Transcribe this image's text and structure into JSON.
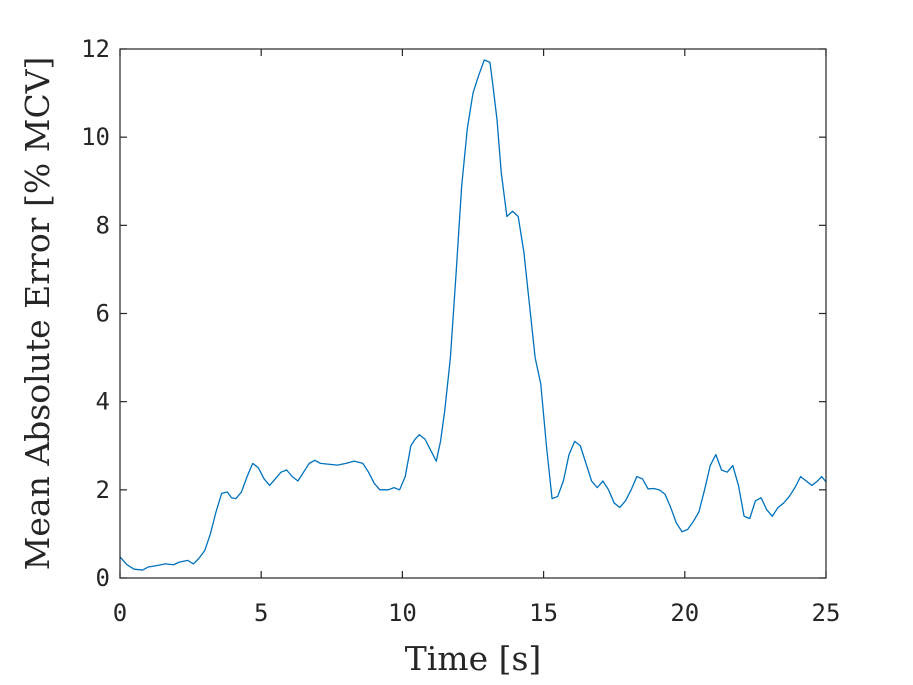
{
  "chart_data": {
    "type": "line",
    "xlabel": "Time [s]",
    "ylabel": "Mean Absolute Error [% MCV]",
    "xlim": [
      0,
      25
    ],
    "ylim": [
      0,
      12
    ],
    "xticks": [
      0,
      5,
      10,
      15,
      20,
      25
    ],
    "yticks": [
      0,
      2,
      4,
      6,
      8,
      10,
      12
    ],
    "xtick_labels": [
      "0",
      "5",
      "10",
      "15",
      "20",
      "25"
    ],
    "ytick_labels": [
      "0",
      "2",
      "4",
      "6",
      "8",
      "10",
      "12"
    ],
    "grid": false,
    "box": true,
    "series": [
      {
        "color": "#0072BD",
        "x": [
          0.0,
          0.25,
          0.5,
          0.8,
          1.0,
          1.3,
          1.6,
          1.9,
          2.1,
          2.4,
          2.6,
          2.8,
          3.0,
          3.2,
          3.4,
          3.6,
          3.8,
          3.95,
          4.1,
          4.3,
          4.5,
          4.7,
          4.9,
          5.1,
          5.3,
          5.5,
          5.7,
          5.9,
          6.1,
          6.3,
          6.5,
          6.7,
          6.9,
          7.1,
          7.4,
          7.7,
          8.0,
          8.3,
          8.6,
          8.8,
          9.0,
          9.2,
          9.5,
          9.7,
          9.9,
          10.1,
          10.3,
          10.45,
          10.6,
          10.8,
          11.0,
          11.2,
          11.35,
          11.5,
          11.7,
          11.9,
          12.1,
          12.3,
          12.5,
          12.7,
          12.9,
          13.1,
          13.2,
          13.35,
          13.5,
          13.7,
          13.9,
          14.1,
          14.3,
          14.5,
          14.7,
          14.9,
          15.1,
          15.3,
          15.5,
          15.7,
          15.9,
          16.1,
          16.3,
          16.5,
          16.7,
          16.9,
          17.1,
          17.3,
          17.5,
          17.7,
          17.9,
          18.1,
          18.3,
          18.5,
          18.7,
          18.9,
          19.1,
          19.3,
          19.5,
          19.7,
          19.9,
          20.1,
          20.3,
          20.5,
          20.7,
          20.9,
          21.1,
          21.3,
          21.5,
          21.7,
          21.9,
          22.1,
          22.3,
          22.5,
          22.7,
          22.9,
          23.1,
          23.3,
          23.5,
          23.7,
          23.9,
          24.1,
          24.3,
          24.5,
          24.7,
          24.85,
          25.0
        ],
        "y": [
          0.48,
          0.3,
          0.2,
          0.18,
          0.25,
          0.28,
          0.32,
          0.3,
          0.36,
          0.4,
          0.32,
          0.45,
          0.62,
          1.0,
          1.5,
          1.92,
          1.95,
          1.82,
          1.8,
          1.95,
          2.3,
          2.6,
          2.5,
          2.25,
          2.1,
          2.25,
          2.4,
          2.45,
          2.3,
          2.2,
          2.4,
          2.6,
          2.67,
          2.6,
          2.58,
          2.56,
          2.6,
          2.65,
          2.6,
          2.4,
          2.15,
          2.0,
          2.0,
          2.05,
          2.0,
          2.3,
          3.0,
          3.15,
          3.25,
          3.15,
          2.9,
          2.65,
          3.1,
          3.8,
          5.0,
          6.9,
          8.9,
          10.2,
          11.0,
          11.4,
          11.75,
          11.7,
          11.2,
          10.4,
          9.2,
          8.2,
          8.32,
          8.2,
          7.4,
          6.2,
          5.0,
          4.4,
          3.0,
          1.8,
          1.85,
          2.2,
          2.8,
          3.1,
          3.0,
          2.6,
          2.2,
          2.05,
          2.2,
          2.0,
          1.7,
          1.6,
          1.75,
          2.0,
          2.3,
          2.25,
          2.02,
          2.03,
          2.0,
          1.9,
          1.6,
          1.25,
          1.05,
          1.1,
          1.28,
          1.5,
          2.0,
          2.55,
          2.8,
          2.45,
          2.4,
          2.55,
          2.1,
          1.4,
          1.35,
          1.75,
          1.82,
          1.55,
          1.4,
          1.6,
          1.7,
          1.85,
          2.05,
          2.3,
          2.2,
          2.1,
          2.2,
          2.3,
          2.18
        ]
      }
    ]
  }
}
